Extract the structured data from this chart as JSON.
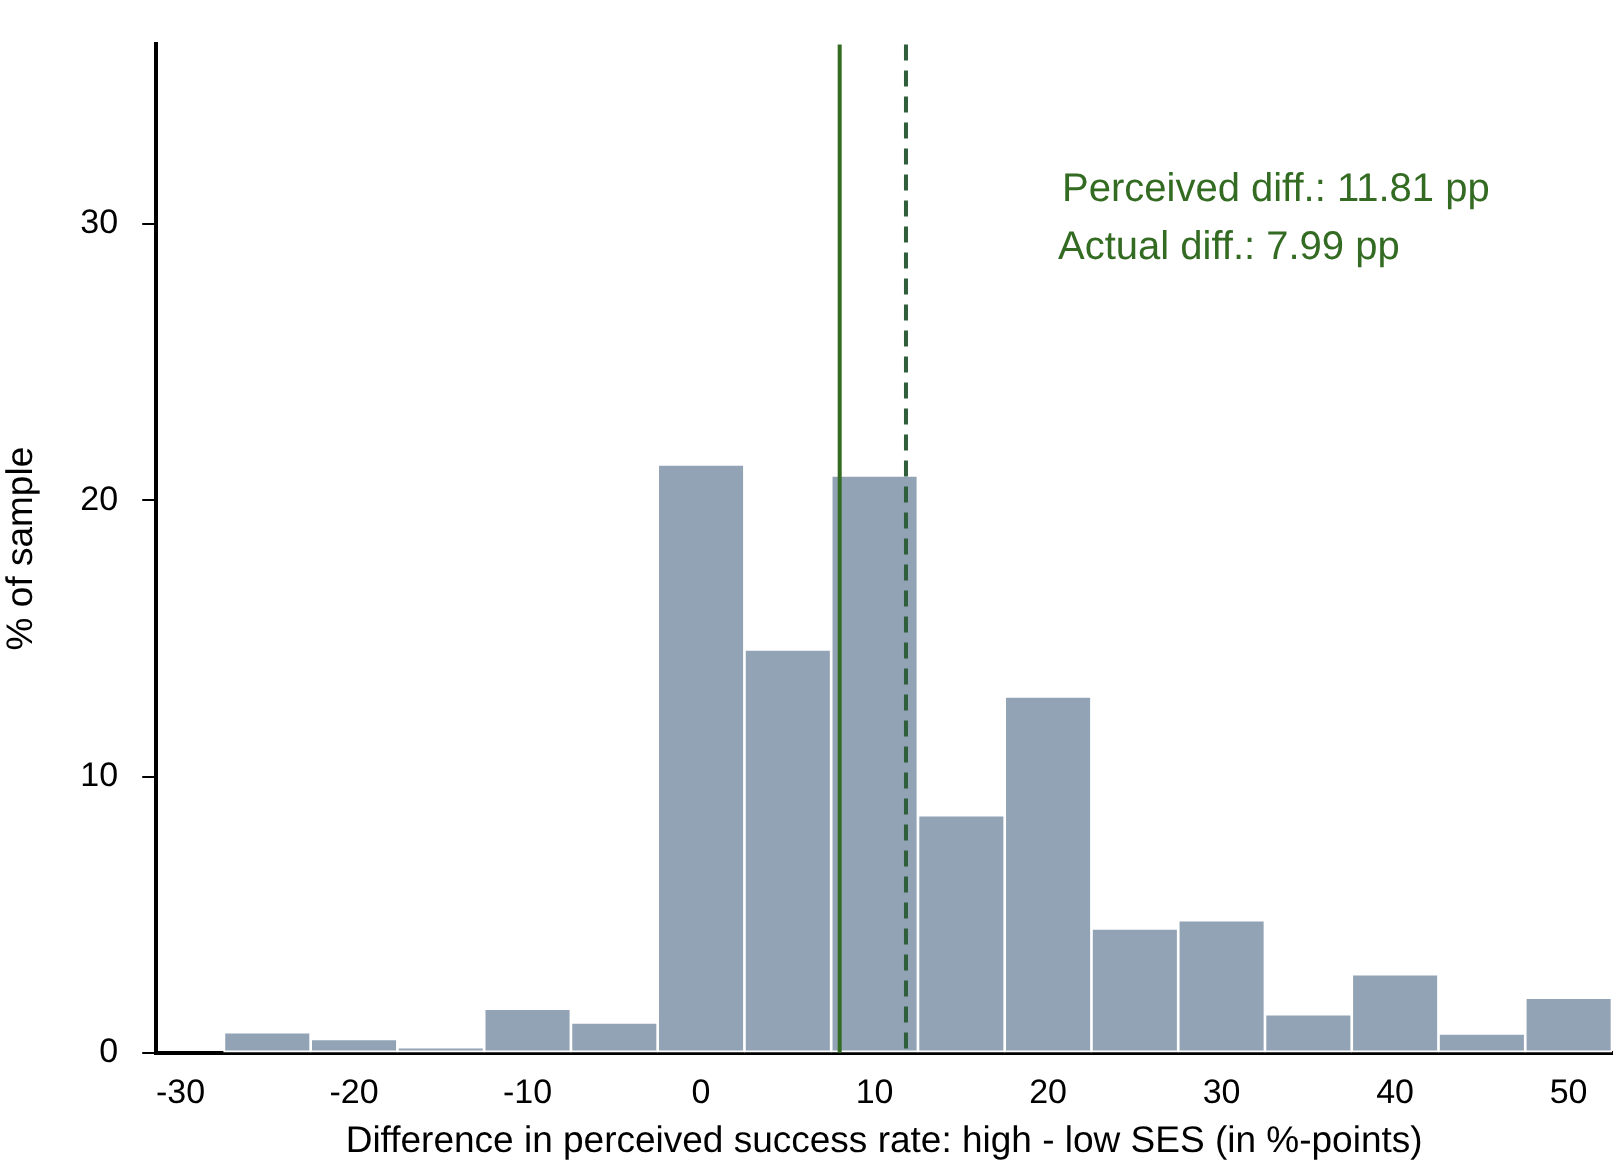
{
  "chart_data": {
    "type": "histogram",
    "xlabel": "Difference in perceived success rate: high - low SES (in %-points)",
    "ylabel": "% of sample",
    "bins": [
      -27.5,
      -22.5,
      -17.5,
      -12.5,
      -7.5,
      -2.5,
      2.5,
      7.5,
      12.5,
      17.5,
      22.5,
      27.5,
      32.5,
      37.5,
      42.5,
      47.5,
      52.5
    ],
    "values": [
      0.75,
      0.5,
      0.2,
      1.6,
      1.1,
      21.3,
      14.6,
      20.9,
      8.6,
      12.9,
      4.5,
      4.8,
      1.4,
      2.85,
      0.7,
      2.0
    ],
    "color": "#92a3b5",
    "xlim": [
      -31.4,
      52.5
    ],
    "xticks": [
      -30,
      -20,
      -10,
      0,
      10,
      20,
      30,
      40,
      50
    ],
    "ylim": [
      0,
      36.5
    ],
    "yticks": [
      0,
      10,
      20,
      30
    ],
    "ref_lines": [
      {
        "axis": "x",
        "value": 7.99,
        "color": "#336b22",
        "line_style": "solid"
      },
      {
        "axis": "x",
        "value": 11.81,
        "color": "#2f5e3a",
        "line_style": "dashed"
      }
    ],
    "annotations": [
      "Perceived diff.: 11.81 pp",
      "Actual diff.: 7.99 pp"
    ],
    "grid": false,
    "legend": false
  }
}
